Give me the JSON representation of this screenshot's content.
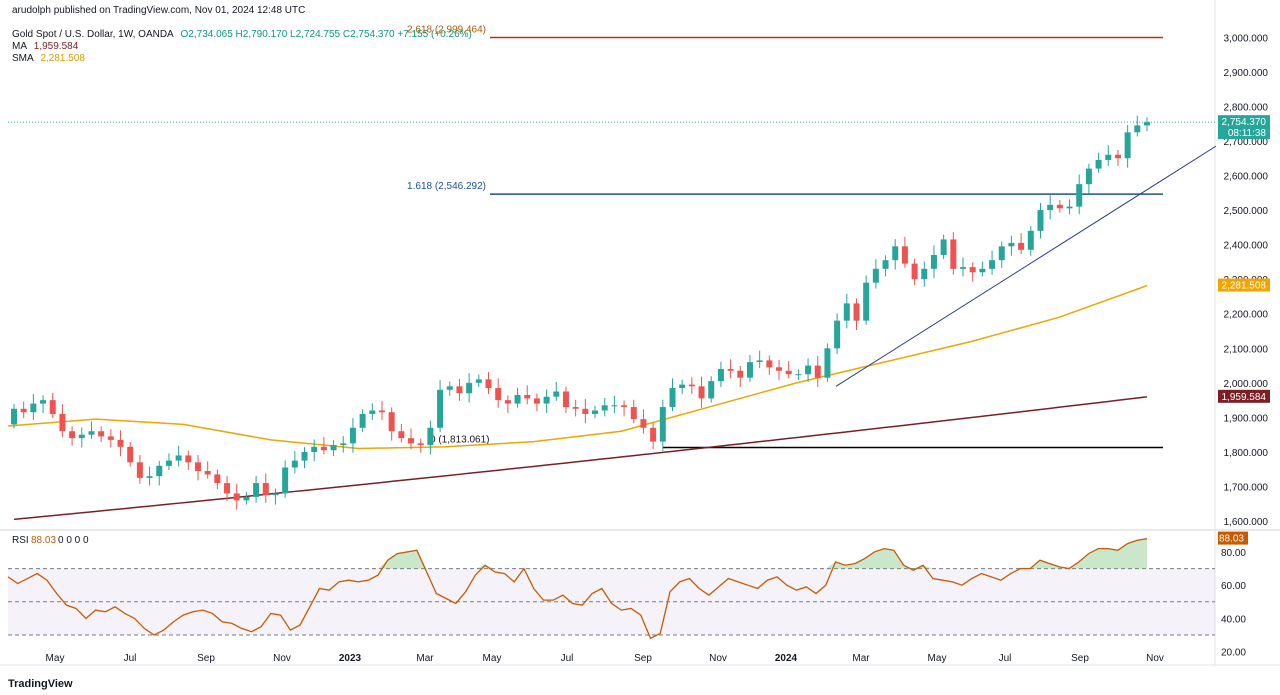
{
  "header": {
    "publisher": "arudolph published on TradingView.com, Nov 01, 2024 12:48 UTC",
    "symbol": "Gold Spot / U.S. Dollar, 1W, OANDA",
    "ohlc": "O2,734.065 H2,790.170 L2,724.755 C2,754.370 +7.155 (+0.26%)",
    "ma_label": "MA",
    "ma_value": "1,959.584",
    "sma_label": "SMA",
    "sma_value": "2,281.508"
  },
  "brand": {
    "logo_text": "TradingView"
  },
  "colors": {
    "up": "#26a69a",
    "down": "#ef5350",
    "sma": "#f0a500",
    "ma": "#7b1f24",
    "rsi": "#c85a00",
    "fib_top": "#c62828",
    "fib_mid": "#1e4fa1",
    "fib_base": "#000000",
    "trendline": "#2a3a8c"
  },
  "price_tags": {
    "last": "2,754.370",
    "countdown": "08:11:38",
    "sma": "2,281.508",
    "ma": "1,959.584",
    "rsi": "88.03"
  },
  "chart_data": {
    "type": "candlestick",
    "x_labels": [
      "May",
      "Jul",
      "Sep",
      "Nov",
      "2023",
      "Mar",
      "May",
      "Jul",
      "Sep",
      "Nov",
      "2024",
      "Mar",
      "May",
      "Jul",
      "Sep",
      "Nov"
    ],
    "y_ticks": [
      "3,000.000",
      "2,900.000",
      "2,800.000",
      "2,700.000",
      "2,600.000",
      "2,500.000",
      "2,400.000",
      "2,300.000",
      "2,200.000",
      "2,100.000",
      "2,000.000",
      "1,900.000",
      "1,800.000",
      "1,700.000",
      "1,600.000"
    ],
    "ylim": [
      1580,
      3050
    ],
    "fib_levels": [
      {
        "label": "2.618 (2,999.464)",
        "value": 2999.464
      },
      {
        "label": "1.618 (2,546.292)",
        "value": 2546.292
      },
      {
        "label": "0 (1,813.061)",
        "value": 1813.061
      }
    ],
    "close": [
      1925,
      1915,
      1940,
      1950,
      1910,
      1860,
      1840,
      1850,
      1860,
      1845,
      1835,
      1815,
      1770,
      1725,
      1730,
      1760,
      1775,
      1790,
      1770,
      1745,
      1735,
      1710,
      1680,
      1660,
      1670,
      1710,
      1675,
      1680,
      1755,
      1775,
      1800,
      1815,
      1805,
      1820,
      1825,
      1870,
      1910,
      1920,
      1915,
      1860,
      1840,
      1825,
      1820,
      1870,
      1980,
      1990,
      1970,
      2000,
      2010,
      1985,
      1950,
      1940,
      1965,
      1955,
      1940,
      1960,
      1975,
      1930,
      1925,
      1910,
      1920,
      1935,
      1935,
      1930,
      1895,
      1870,
      1830,
      1930,
      1985,
      1995,
      1990,
      1955,
      2005,
      2040,
      2035,
      2015,
      2060,
      2065,
      2045,
      2035,
      2025,
      2025,
      2050,
      2015,
      2100,
      2180,
      2230,
      2180,
      2290,
      2330,
      2355,
      2395,
      2345,
      2300,
      2330,
      2370,
      2415,
      2330,
      2335,
      2320,
      2330,
      2355,
      2395,
      2405,
      2385,
      2440,
      2500,
      2515,
      2505,
      2510,
      2575,
      2620,
      2645,
      2660,
      2650,
      2725,
      2745,
      2754.37
    ],
    "open_first": 1880,
    "ma": {
      "start": 1605,
      "end": 1959.584
    },
    "sma": [
      1875,
      1895,
      1880,
      1835,
      1810,
      1815,
      1830,
      1860,
      1930,
      2000,
      2060,
      2120,
      2190,
      2281.508
    ],
    "rsi": {
      "ticks": [
        "80.00",
        "60.00",
        "40.00",
        "20.00"
      ],
      "levels": [
        70,
        50,
        30
      ],
      "ylim": [
        18,
        92
      ],
      "last": 88.03,
      "values": [
        65,
        61,
        64,
        67,
        63,
        55,
        48,
        46,
        40,
        45,
        44,
        47,
        43,
        40,
        34,
        30,
        33,
        38,
        42,
        44,
        45,
        43,
        38,
        37,
        34,
        32,
        35,
        43,
        42,
        33,
        36,
        47,
        58,
        57,
        62,
        63,
        62,
        63,
        66,
        75,
        79,
        80,
        81,
        68,
        55,
        52,
        49,
        56,
        66,
        72,
        68,
        67,
        62,
        70,
        58,
        51,
        51,
        54,
        49,
        48,
        55,
        58,
        49,
        45,
        46,
        42,
        28,
        31,
        56,
        62,
        64,
        58,
        54,
        59,
        64,
        62,
        60,
        58,
        63,
        65,
        60,
        57,
        59,
        55,
        60,
        74,
        72,
        73,
        76,
        80,
        82,
        81,
        72,
        69,
        72,
        64,
        63,
        62,
        60,
        64,
        67,
        65,
        63,
        67,
        70,
        70,
        75,
        73,
        71,
        70,
        74,
        79,
        82,
        82,
        81,
        85,
        87,
        88.03
      ]
    }
  }
}
